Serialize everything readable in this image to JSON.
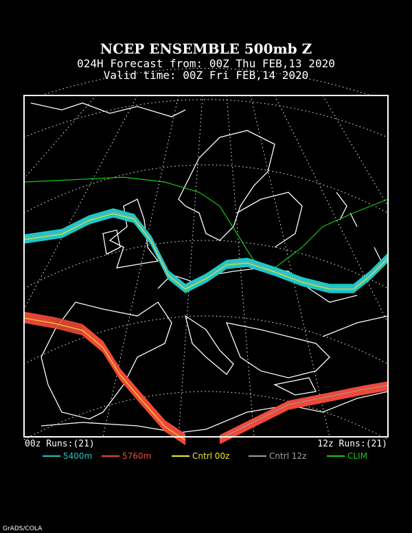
{
  "header": {
    "title": "NCEP ENSEMBLE 500mb Z",
    "line1": "024H Forecast from: 00Z Thu FEB,13 2020",
    "line2": "Valid time: 00Z Fri FEB,14 2020"
  },
  "runs": {
    "left": "00z Runs:(21)",
    "right": "12z Runs:(21)"
  },
  "legend": [
    {
      "label": "5400m",
      "color": "#1ec8c8"
    },
    {
      "label": "5760m",
      "color": "#f04a3a"
    },
    {
      "label": "Cntrl 00z",
      "color": "#f0f020"
    },
    {
      "label": "Cntrl 12z",
      "color": "#a0a0a0"
    },
    {
      "label": "CLIM",
      "color": "#18c818"
    }
  ],
  "credit": "GrADS/COLA"
}
